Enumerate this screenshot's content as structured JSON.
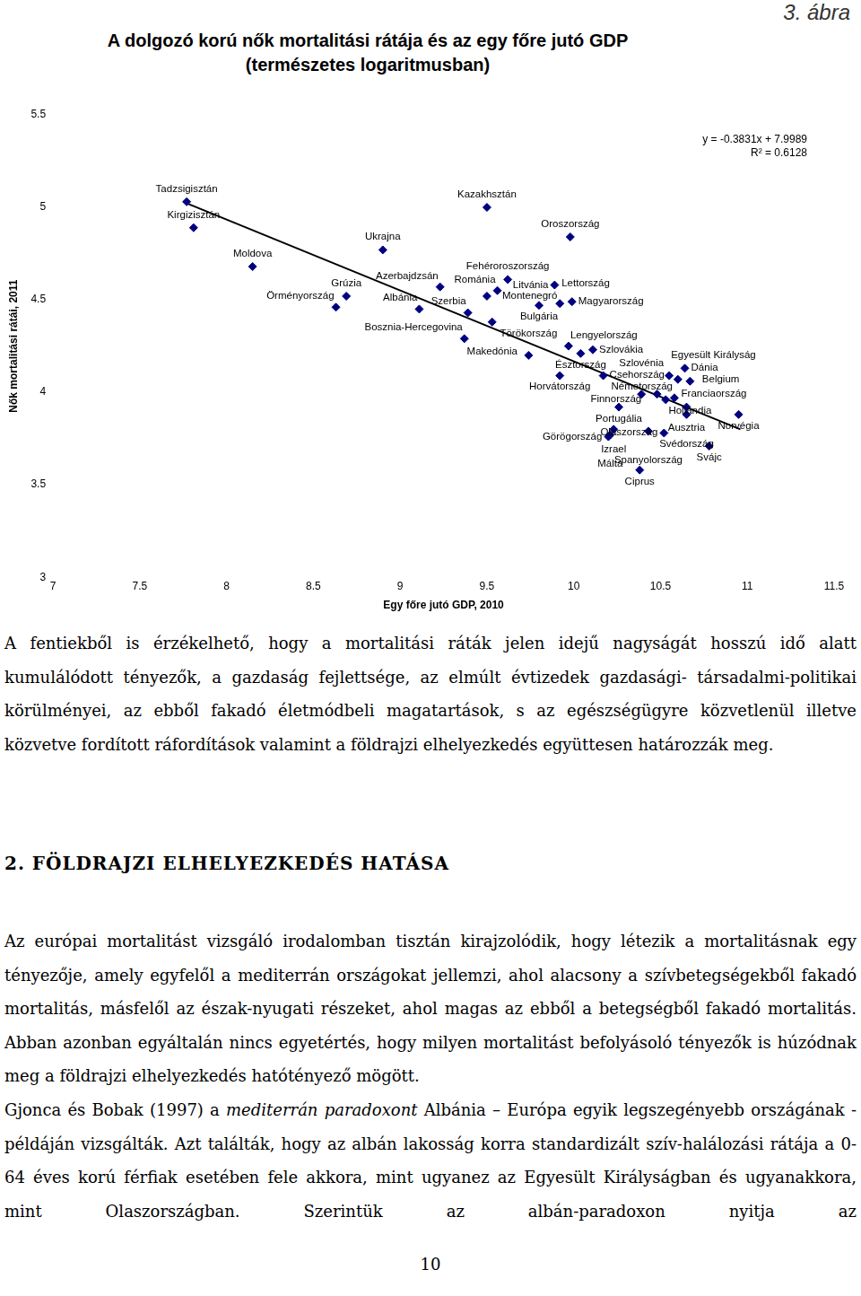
{
  "figure_label": "3. ábra",
  "chart_data": {
    "type": "scatter",
    "title": "A dolgozó korú nők mortalitási rátája és az egy főre jutó GDP",
    "subtitle": "(természetes logaritmusban)",
    "x_label": "Egy főre jutó GDP, 2010",
    "y_label": "Nők mortalitási rátái, 2011",
    "xlim": [
      7,
      11.5
    ],
    "xticks": [
      7,
      7.5,
      8,
      8.5,
      9,
      9.5,
      10,
      10.5,
      11,
      11.5
    ],
    "ylim": [
      3,
      5.5
    ],
    "yticks": [
      3,
      3.5,
      4,
      4.5,
      5,
      5.5
    ],
    "grid": false,
    "legend": "none",
    "series": [
      {
        "type": "scatter",
        "color": "#000080",
        "marker": "diamond",
        "labels": [
          "Tadzsigisztán",
          "Kirgizisztán",
          "Moldova",
          "Ukrajna",
          "Örményország",
          "Grúzia",
          "Kazakhsztán",
          "Oroszország",
          "Fehéroroszország",
          "Albánia",
          "Azerbajdzsán",
          "Szerbia",
          "Montenegró",
          "Bulgária",
          "Románia",
          "Lettország",
          "Litvánia",
          "Magyarország",
          "Makedónia",
          "Bosznia-Hercegovina",
          "Törökország",
          "Lengyelország",
          "Észtország",
          "Szlovákia",
          "Horvátország",
          "Csehország",
          "Portugália",
          "Szlovénia",
          "Franciaország",
          "Finnország",
          "Németország",
          "Egyesült Királyság",
          "Belgium",
          "Dánia",
          "Hollandia",
          "Ausztria",
          "Norvégia",
          "Svédország",
          "Izrael",
          "Görögország",
          "Málta",
          "Spanyolország",
          "Olaszország",
          "Svájc",
          "Ciprus"
        ],
        "x": [
          7.77,
          7.81,
          8.15,
          8.9,
          8.63,
          8.69,
          9.5,
          9.98,
          9.62,
          9.11,
          9.23,
          9.39,
          9.5,
          9.8,
          9.56,
          9.92,
          9.89,
          9.99,
          9.53,
          9.37,
          9.74,
          9.97,
          10.04,
          10.11,
          9.92,
          10.17,
          10.26,
          10.39,
          10.48,
          10.53,
          10.58,
          10.55,
          10.6,
          10.64,
          10.67,
          10.65,
          10.95,
          10.65,
          10.23,
          10.2,
          10.21,
          10.43,
          10.52,
          10.78,
          10.38
        ],
        "values": [
          5.03,
          4.89,
          4.68,
          4.77,
          4.46,
          4.52,
          5.0,
          4.84,
          4.61,
          4.45,
          4.57,
          4.43,
          4.52,
          4.47,
          4.55,
          4.48,
          4.58,
          4.49,
          4.38,
          4.29,
          4.2,
          4.25,
          4.21,
          4.23,
          4.09,
          4.09,
          3.92,
          3.99,
          3.99,
          3.96,
          3.97,
          4.09,
          4.07,
          4.13,
          4.06,
          3.92,
          3.88,
          3.88,
          3.8,
          3.76,
          3.77,
          3.79,
          3.78,
          3.71,
          3.58
        ]
      },
      {
        "type": "line",
        "name": "y = -0.3831x + 7.9989",
        "color": "#000000",
        "line_style": "solid",
        "x": [
          7.75,
          10.96
        ],
        "values": [
          5.03,
          3.8
        ]
      }
    ],
    "annotations": [
      "y = -0.3831x + 7.9989",
      "R² = 0.6128"
    ]
  },
  "document": {
    "paragraphs_before": [
      [
        {
          "text": "A fentiekből is érzékelhető, hogy a mortalitási ráták jelen idejű nagyságát hosszú idő alatt kumulálódott tényezők, a gazdaság fejlettsége, az elmúlt évtizedek gazdasági- társadalmi-politikai körülményei, az ebből fakadó életmódbeli magatartások, s az egészségügyre közvetlenül illetve közvetve fordított ráfordítások valamint a földrajzi elhelyezkedés együttesen határozzák meg."
        }
      ]
    ],
    "heading": "2. FÖLDRAJZI ELHELYEZKEDÉS HATÁSA",
    "paragraphs_after": [
      [
        {
          "text": "Az európai mortalitást vizsgáló irodalomban tisztán kirajzolódik, hogy létezik a mortalitásnak egy tényezője, amely egyfelől a mediterrán országokat jellemzi, ahol alacsony a szívbetegségekből fakadó mortalitás, másfelől az észak-nyugati részeket, ahol magas az ebből a betegségből fakadó mortalitás. Abban azonban egyáltalán nincs egyetértés, hogy milyen mortalitást befolyásoló tényezők is húzódnak meg a földrajzi elhelyezkedés hatótényező mögött."
        }
      ],
      [
        {
          "text": "Gjonca és Bobak (1997) a "
        },
        {
          "text": "mediterrán paradoxont",
          "italic": true
        },
        {
          "text": " Albánia – Európa egyik legszegényebb országának - példáján vizsgálták. Azt találták, hogy az albán lakosság korra standardizált szív-halálozási rátája a 0-64 éves korú férfiak esetében fele akkora, mint ugyanez az Egyesült Királyságban és ugyanakkora, mint Olaszországban. Szerintük az albán-paradoxon nyitja az"
        }
      ]
    ],
    "page_number": "10"
  }
}
